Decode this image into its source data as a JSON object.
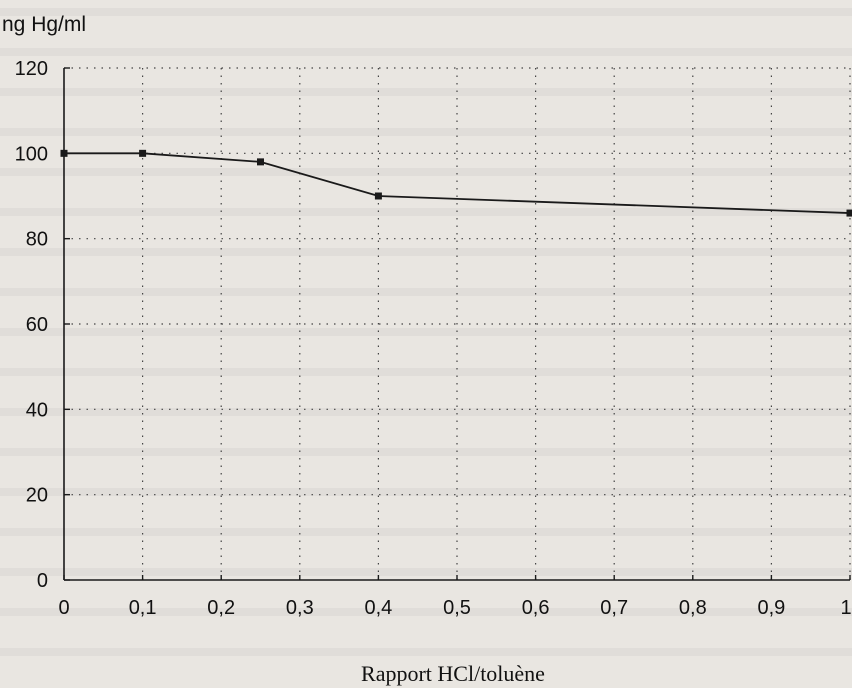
{
  "chart_data": {
    "type": "line",
    "title": "",
    "ylabel": "ng Hg/ml",
    "xlabel": "Rapport HCl/toluène",
    "xlim": [
      0,
      1
    ],
    "ylim": [
      0,
      120
    ],
    "x_ticks": [
      0,
      0.1,
      0.2,
      0.3,
      0.4,
      0.5,
      0.6,
      0.7,
      0.8,
      0.9,
      1
    ],
    "x_tick_labels": [
      "0",
      "0,1",
      "0,2",
      "0,3",
      "0,4",
      "0,5",
      "0,6",
      "0,7",
      "0,8",
      "0,9",
      "1"
    ],
    "y_ticks": [
      0,
      20,
      40,
      60,
      80,
      100,
      120
    ],
    "y_tick_labels": [
      "0",
      "20",
      "40",
      "60",
      "80",
      "100",
      "120"
    ],
    "grid": "dotted",
    "series": [
      {
        "x": [
          0,
          0.1,
          0.25,
          0.4,
          1
        ],
        "y": [
          100,
          100,
          98,
          90,
          86
        ]
      }
    ]
  },
  "colors": {
    "line": "#1a1a1a",
    "grid": "#444444",
    "axis": "#1a1a1a",
    "background": "#e9e6e1"
  }
}
